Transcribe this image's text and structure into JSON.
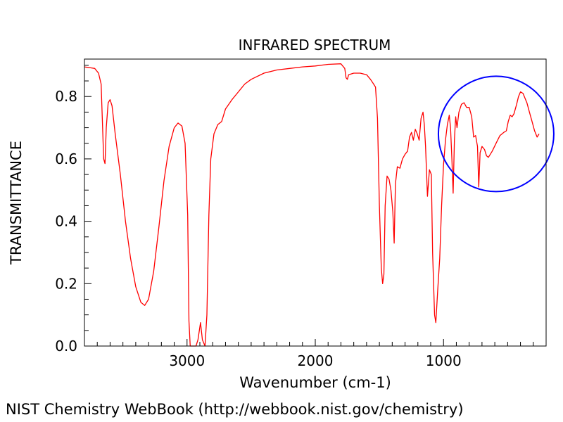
{
  "chart_data": {
    "type": "line",
    "title": "INFRARED SPECTRUM",
    "xlabel": "Wavenumber (cm-1)",
    "ylabel": "TRANSMITTANCE",
    "xlim": [
      3800,
      200
    ],
    "ylim": [
      0.0,
      0.92
    ],
    "x_ticks": [
      3000,
      2000,
      1000
    ],
    "x_tick_labels": [
      "3000",
      "2000",
      "1000"
    ],
    "y_ticks": [
      0.0,
      0.2,
      0.4,
      0.6,
      0.8
    ],
    "y_tick_labels": [
      "0.0",
      "0.2",
      "0.4",
      "0.6",
      "0.8"
    ],
    "grid": false,
    "series": [
      {
        "name": "spectrum",
        "color": "#ff0000",
        "points": [
          [
            3800,
            0.895
          ],
          [
            3720,
            0.89
          ],
          [
            3690,
            0.875
          ],
          [
            3670,
            0.84
          ],
          [
            3660,
            0.72
          ],
          [
            3650,
            0.6
          ],
          [
            3640,
            0.585
          ],
          [
            3630,
            0.7
          ],
          [
            3615,
            0.78
          ],
          [
            3600,
            0.79
          ],
          [
            3585,
            0.77
          ],
          [
            3560,
            0.68
          ],
          [
            3520,
            0.55
          ],
          [
            3480,
            0.4
          ],
          [
            3440,
            0.28
          ],
          [
            3400,
            0.19
          ],
          [
            3360,
            0.14
          ],
          [
            3330,
            0.13
          ],
          [
            3300,
            0.15
          ],
          [
            3260,
            0.24
          ],
          [
            3220,
            0.38
          ],
          [
            3180,
            0.53
          ],
          [
            3140,
            0.64
          ],
          [
            3100,
            0.7
          ],
          [
            3070,
            0.715
          ],
          [
            3040,
            0.705
          ],
          [
            3015,
            0.65
          ],
          [
            2995,
            0.42
          ],
          [
            2985,
            0.08
          ],
          [
            2975,
            0.0
          ],
          [
            2950,
            0.0
          ],
          [
            2930,
            0.0
          ],
          [
            2915,
            0.02
          ],
          [
            2895,
            0.075
          ],
          [
            2880,
            0.02
          ],
          [
            2860,
            0.0
          ],
          [
            2845,
            0.1
          ],
          [
            2830,
            0.42
          ],
          [
            2815,
            0.6
          ],
          [
            2790,
            0.68
          ],
          [
            2760,
            0.71
          ],
          [
            2730,
            0.72
          ],
          [
            2700,
            0.76
          ],
          [
            2650,
            0.79
          ],
          [
            2600,
            0.815
          ],
          [
            2550,
            0.84
          ],
          [
            2500,
            0.855
          ],
          [
            2400,
            0.875
          ],
          [
            2300,
            0.885
          ],
          [
            2200,
            0.89
          ],
          [
            2100,
            0.895
          ],
          [
            2000,
            0.898
          ],
          [
            1900,
            0.903
          ],
          [
            1800,
            0.905
          ],
          [
            1770,
            0.89
          ],
          [
            1760,
            0.86
          ],
          [
            1750,
            0.855
          ],
          [
            1740,
            0.87
          ],
          [
            1700,
            0.875
          ],
          [
            1650,
            0.875
          ],
          [
            1600,
            0.87
          ],
          [
            1570,
            0.855
          ],
          [
            1545,
            0.84
          ],
          [
            1530,
            0.83
          ],
          [
            1515,
            0.73
          ],
          [
            1500,
            0.45
          ],
          [
            1485,
            0.25
          ],
          [
            1475,
            0.2
          ],
          [
            1465,
            0.23
          ],
          [
            1455,
            0.45
          ],
          [
            1440,
            0.545
          ],
          [
            1425,
            0.535
          ],
          [
            1410,
            0.5
          ],
          [
            1395,
            0.43
          ],
          [
            1385,
            0.33
          ],
          [
            1375,
            0.52
          ],
          [
            1360,
            0.575
          ],
          [
            1340,
            0.57
          ],
          [
            1320,
            0.6
          ],
          [
            1300,
            0.615
          ],
          [
            1280,
            0.625
          ],
          [
            1265,
            0.67
          ],
          [
            1250,
            0.685
          ],
          [
            1235,
            0.66
          ],
          [
            1220,
            0.695
          ],
          [
            1205,
            0.68
          ],
          [
            1190,
            0.66
          ],
          [
            1175,
            0.73
          ],
          [
            1160,
            0.75
          ],
          [
            1150,
            0.71
          ],
          [
            1140,
            0.64
          ],
          [
            1125,
            0.48
          ],
          [
            1110,
            0.565
          ],
          [
            1095,
            0.55
          ],
          [
            1085,
            0.3
          ],
          [
            1070,
            0.1
          ],
          [
            1060,
            0.075
          ],
          [
            1045,
            0.18
          ],
          [
            1030,
            0.28
          ],
          [
            1015,
            0.45
          ],
          [
            1000,
            0.58
          ],
          [
            985,
            0.66
          ],
          [
            970,
            0.71
          ],
          [
            955,
            0.74
          ],
          [
            945,
            0.7
          ],
          [
            935,
            0.6
          ],
          [
            925,
            0.49
          ],
          [
            915,
            0.66
          ],
          [
            905,
            0.735
          ],
          [
            895,
            0.7
          ],
          [
            880,
            0.75
          ],
          [
            860,
            0.775
          ],
          [
            840,
            0.78
          ],
          [
            820,
            0.765
          ],
          [
            800,
            0.765
          ],
          [
            780,
            0.735
          ],
          [
            765,
            0.67
          ],
          [
            750,
            0.675
          ],
          [
            735,
            0.64
          ],
          [
            725,
            0.51
          ],
          [
            715,
            0.62
          ],
          [
            700,
            0.64
          ],
          [
            680,
            0.63
          ],
          [
            665,
            0.61
          ],
          [
            650,
            0.605
          ],
          [
            620,
            0.625
          ],
          [
            590,
            0.65
          ],
          [
            560,
            0.675
          ],
          [
            530,
            0.685
          ],
          [
            510,
            0.69
          ],
          [
            495,
            0.72
          ],
          [
            480,
            0.74
          ],
          [
            465,
            0.735
          ],
          [
            450,
            0.745
          ],
          [
            430,
            0.775
          ],
          [
            415,
            0.8
          ],
          [
            400,
            0.815
          ],
          [
            380,
            0.81
          ],
          [
            365,
            0.795
          ],
          [
            350,
            0.78
          ],
          [
            330,
            0.75
          ],
          [
            310,
            0.72
          ],
          [
            290,
            0.69
          ],
          [
            270,
            0.67
          ],
          [
            255,
            0.68
          ]
        ]
      }
    ],
    "annotations": [
      {
        "type": "circle",
        "color": "#0000ff",
        "center": [
          590,
          0.68
        ],
        "description": "highlighted fingerprint region"
      }
    ]
  },
  "footer": {
    "credit": "NIST Chemistry WebBook (http://webbook.nist.gov/chemistry)"
  },
  "colors": {
    "line": "#ff0000",
    "highlight": "#0000ff",
    "axis": "#000000"
  }
}
